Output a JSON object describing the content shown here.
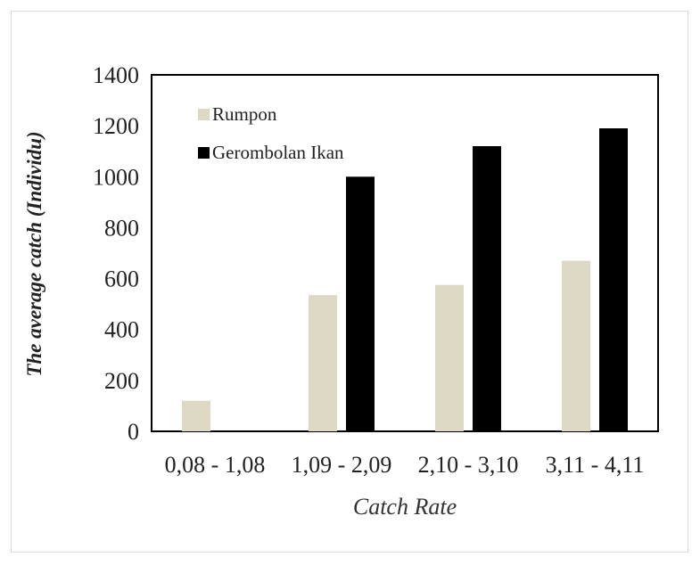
{
  "chart_data": {
    "type": "bar",
    "categories": [
      "0,08 - 1,08",
      "1,09 - 2,09",
      "2,10 - 3,10",
      "3,11 - 4,11"
    ],
    "series": [
      {
        "name": "Rumpon",
        "values": [
          120,
          535,
          575,
          670
        ],
        "color": "#ddd9c4"
      },
      {
        "name": "Gerombolan Ikan",
        "values": [
          0,
          1000,
          1120,
          1190
        ],
        "color": "#000000"
      }
    ],
    "xlabel": "Catch Rate",
    "ylabel": "The average catch (Individu)",
    "ylim": [
      0,
      1400
    ],
    "yticks": [
      0,
      200,
      400,
      600,
      800,
      1000,
      1200,
      1400
    ],
    "legend_position": "top-left",
    "grid": false
  }
}
